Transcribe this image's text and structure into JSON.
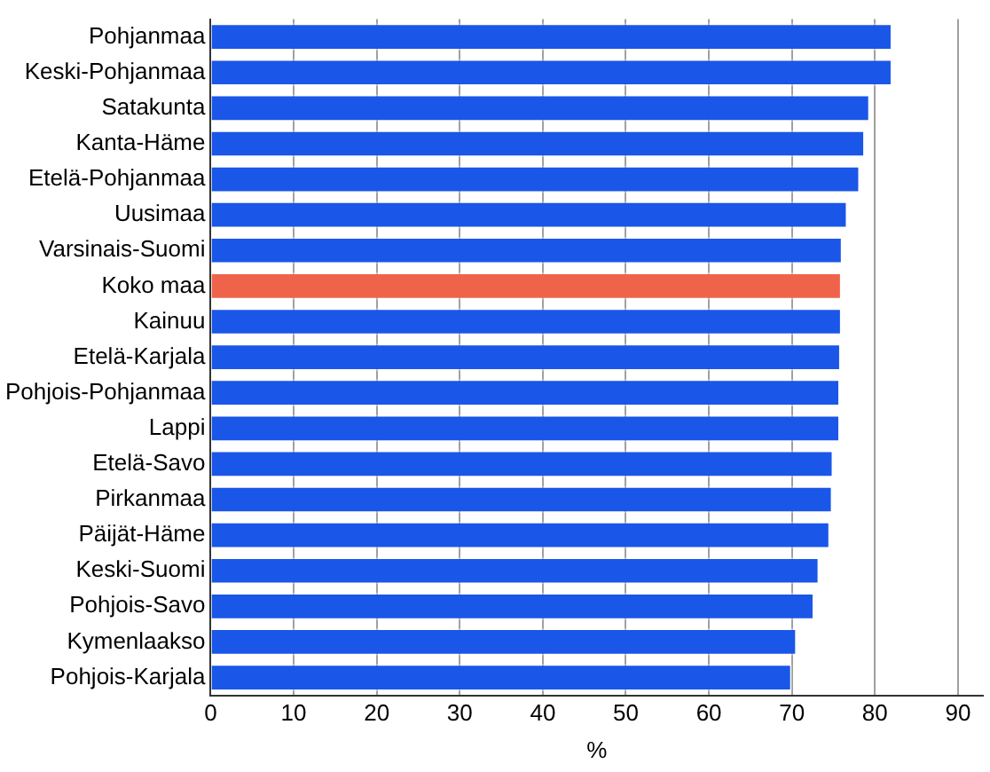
{
  "chart_data": {
    "type": "bar",
    "orientation": "horizontal",
    "xlabel": "%",
    "categories": [
      "Pohjanmaa",
      "Keski-Pohjanmaa",
      "Satakunta",
      "Kanta-Häme",
      "Etelä-Pohjanmaa",
      "Uusimaa",
      "Varsinais-Suomi",
      "Koko maa",
      "Kainuu",
      "Etelä-Karjala",
      "Pohjois-Pohjanmaa",
      "Lappi",
      "Etelä-Savo",
      "Pirkanmaa",
      "Päijät-Häme",
      "Keski-Suomi",
      "Pohjois-Savo",
      "Kymenlaakso",
      "Pohjois-Karjala"
    ],
    "values": [
      82.1,
      82.1,
      79.4,
      78.8,
      78.2,
      76.7,
      76.1,
      76.0,
      76.0,
      75.9,
      75.8,
      75.8,
      75.0,
      74.9,
      74.6,
      73.3,
      72.7,
      70.6,
      70.0
    ],
    "colors": [
      "#1a56e8",
      "#1a56e8",
      "#1a56e8",
      "#1a56e8",
      "#1a56e8",
      "#1a56e8",
      "#1a56e8",
      "#f0634b",
      "#1a56e8",
      "#1a56e8",
      "#1a56e8",
      "#1a56e8",
      "#1a56e8",
      "#1a56e8",
      "#1a56e8",
      "#1a56e8",
      "#1a56e8",
      "#1a56e8",
      "#1a56e8"
    ],
    "xlim": [
      0,
      93
    ],
    "xticks": [
      0,
      10,
      20,
      30,
      40,
      50,
      60,
      70,
      80,
      90
    ],
    "grid": "x",
    "legend": false
  }
}
